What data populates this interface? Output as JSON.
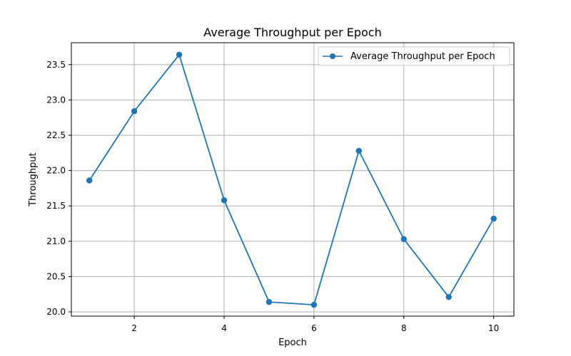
{
  "chart_data": {
    "type": "line",
    "title": "Average Throughput per Epoch",
    "xlabel": "Epoch",
    "ylabel": "Throughput",
    "x": [
      1,
      2,
      3,
      4,
      5,
      6,
      7,
      8,
      9,
      10
    ],
    "series": [
      {
        "name": "Average Throughput per Epoch",
        "values": [
          21.86,
          22.84,
          23.64,
          21.58,
          20.14,
          20.1,
          22.28,
          21.03,
          20.21,
          21.32
        ],
        "color": "#1f77b4",
        "marker": "circle"
      }
    ],
    "xlim": [
      0.6,
      10.45
    ],
    "ylim": [
      19.94,
      23.81
    ],
    "xticks": [
      2,
      4,
      6,
      8,
      10
    ],
    "xtick_labels": [
      "2",
      "4",
      "6",
      "8",
      "10"
    ],
    "yticks": [
      20.0,
      20.5,
      21.0,
      21.5,
      22.0,
      22.5,
      23.0,
      23.5
    ],
    "ytick_labels": [
      "20.0",
      "20.5",
      "21.0",
      "21.5",
      "22.0",
      "22.5",
      "23.0",
      "23.5"
    ],
    "grid": true,
    "legend_position": "upper right"
  }
}
